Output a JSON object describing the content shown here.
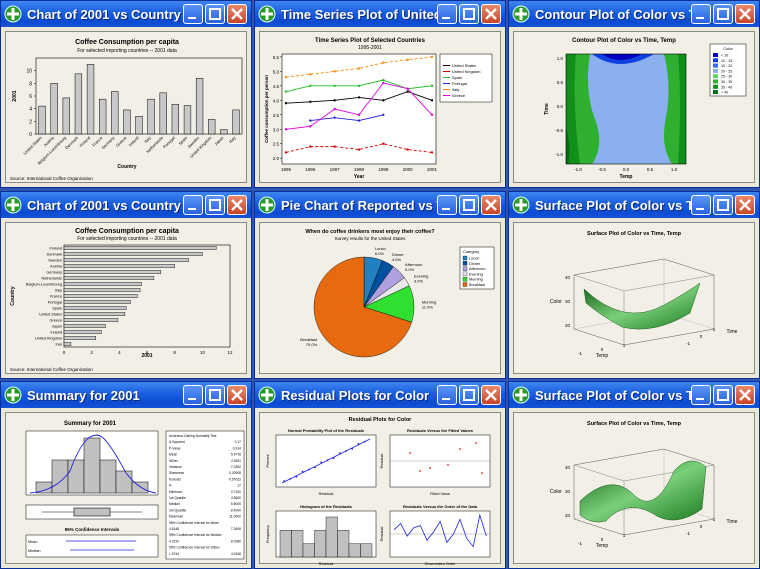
{
  "windows": [
    {
      "title": "Chart of 2001 vs Country"
    },
    {
      "title": "Time Series Plot of United Stat..."
    },
    {
      "title": "Contour Plot of Color vs Time, ..."
    },
    {
      "title": "Chart of 2001 vs Country"
    },
    {
      "title": "Pie Chart of Reported vs Time ..."
    },
    {
      "title": "Surface Plot of Color vs Time, ..."
    },
    {
      "title": "Summary for 2001"
    },
    {
      "title": "Residual Plots for Color"
    },
    {
      "title": "Surface Plot of Color vs Time, ..."
    }
  ],
  "colors": {
    "accent": "#1a5de0",
    "close": "#c8442a",
    "bar_fill": "#c8c8c8",
    "pie_breakfast": "#e86a10"
  },
  "chart_data": [
    {
      "type": "bar",
      "title": "Coffee Consumption per capita",
      "subtitle": "For selected importing countries -- 2001 data",
      "xlabel": "Country",
      "ylabel": "2001",
      "note": "Source: International Coffee Organization",
      "categories": [
        "United States",
        "Austria",
        "Belgium-Luxembourg",
        "Denmark",
        "Finland",
        "France",
        "Germany",
        "Greece",
        "Ireland",
        "Italy",
        "Netherlands",
        "Portugal",
        "Spain",
        "Sweden",
        "United Kingdom",
        "Japan",
        "Italy"
      ],
      "values": [
        4.4,
        8.0,
        5.7,
        9.5,
        11.0,
        5.5,
        6.7,
        3.8,
        2.8,
        5.5,
        6.5,
        4.7,
        4.5,
        8.8,
        2.3,
        0.7,
        3.8
      ],
      "ylim": [
        0,
        12
      ],
      "yticks": [
        "0",
        "2",
        "4",
        "6",
        "8",
        "10"
      ]
    },
    {
      "type": "line",
      "title": "Time Series Plot of Selected Countries",
      "subtitle": "1995-2001",
      "xlabel": "Year",
      "ylabel": "Coffee consumption per person",
      "x": [
        "1995",
        "1996",
        "1997",
        "1998",
        "1999",
        "2000",
        "2001"
      ],
      "ylim": [
        1.8,
        5.6
      ],
      "yticks": [
        "2.0",
        "2.5",
        "3.0",
        "3.5",
        "4.0",
        "4.5",
        "5.0",
        "5.5"
      ],
      "series": [
        {
          "name": "United States",
          "color": "#000000",
          "values": [
            3.9,
            3.95,
            4.0,
            4.1,
            4.0,
            4.3,
            4.0
          ]
        },
        {
          "name": "United Kingdom",
          "color": "#e00000",
          "values": [
            2.2,
            2.4,
            2.4,
            2.3,
            2.5,
            2.3,
            2.2
          ]
        },
        {
          "name": "Spain",
          "color": "#20c020",
          "values": [
            4.3,
            4.5,
            4.5,
            4.5,
            4.7,
            4.4,
            4.5
          ]
        },
        {
          "name": "Portugal",
          "color": "#2020e0",
          "values": [
            null,
            3.3,
            3.4,
            3.3,
            3.5,
            null,
            null
          ]
        },
        {
          "name": "Italy",
          "color": "#ff8800",
          "values": [
            4.8,
            4.9,
            5.0,
            5.1,
            5.3,
            5.4,
            5.5
          ]
        },
        {
          "name": "Greece",
          "color": "#e000e0",
          "values": [
            3.0,
            3.1,
            3.7,
            3.5,
            4.6,
            4.4,
            3.5
          ]
        }
      ]
    },
    {
      "type": "heatmap",
      "title": "Contour Plot of Color vs Time, Temp",
      "xlabel": "Temp",
      "ylabel": "Time",
      "xticks": [
        "-1.0",
        "-0.5",
        "0.0",
        "0.5",
        "1.0"
      ],
      "yticks": [
        "-1.0",
        "-0.5",
        "0.0",
        "0.5",
        "1.0"
      ],
      "legend_title": "Color",
      "levels": [
        "< 10",
        "10 - 15",
        "15 - 20",
        "20 - 25",
        "25 - 30",
        "30 - 35",
        "35 - 40",
        "> 40"
      ],
      "level_colors": [
        "#0000c0",
        "#1040e0",
        "#3070f0",
        "#8ab0f0",
        "#60d060",
        "#30b030",
        "#10901a",
        "#007010"
      ]
    },
    {
      "type": "bar",
      "title": "Coffee Consumption per capita",
      "subtitle": "For selected importing countries -- 2001 data",
      "xlabel": "2001",
      "ylabel": "Country",
      "note": "Source: International Coffee Organization",
      "categories": [
        "Finland",
        "Denmark",
        "Sweden",
        "Austria",
        "Germany",
        "Netherlands",
        "Belgium-Luxembourg",
        "Italy",
        "France",
        "Portugal",
        "Spain",
        "United States",
        "Greece",
        "Japan",
        "Ireland",
        "United Kingdom",
        "Iran"
      ],
      "values": [
        11.0,
        10.0,
        9.0,
        8.0,
        7.0,
        6.5,
        5.6,
        5.5,
        5.3,
        4.8,
        4.5,
        4.4,
        3.9,
        3.0,
        2.7,
        2.3,
        0.5
      ],
      "xlim": [
        0,
        12
      ],
      "xticks": [
        "0",
        "2",
        "4",
        "6",
        "8",
        "10",
        "12"
      ]
    },
    {
      "type": "pie",
      "title": "When do coffee drinkers most enjoy their coffee?",
      "subtitle": "Survey results for the United States",
      "legend_title": "Category",
      "slices": [
        {
          "label": "Lunch",
          "pct": "6.0%",
          "value": 6.0,
          "color": "#2080c0"
        },
        {
          "label": "Dinner",
          "pct": "4.0%",
          "value": 4.0,
          "color": "#0050a0"
        },
        {
          "label": "Afternoon",
          "pct": "5.0%",
          "value": 5.0,
          "color": "#b0a0e0"
        },
        {
          "label": "Evening",
          "pct": "3.0%",
          "value": 3.0,
          "color": "#e8e8e8"
        },
        {
          "label": "Morning",
          "pct": "11.9%",
          "value": 11.9,
          "color": "#30e030"
        },
        {
          "label": "Breakfast",
          "pct": "70.0%",
          "value": 70.0,
          "color": "#e86a10"
        }
      ]
    },
    {
      "type": "other",
      "title": "Surface Plot of Color vs Time, Temp",
      "zlabel": "Color",
      "xlabel": "Temp",
      "ylabel": "Time",
      "zticks": [
        "20",
        "30",
        "40"
      ],
      "xticks": [
        "-1",
        "0",
        "1"
      ],
      "yticks": [
        "-1",
        "0",
        "1"
      ]
    },
    {
      "type": "other",
      "title": "Summary for 2001",
      "ci_title": "95% Confidence Intervals",
      "ci_labels": [
        "Mean",
        "Median"
      ],
      "stats": [
        [
          "Anderson-Darling Normality Test",
          ""
        ],
        [
          "A-Squared",
          "0.17"
        ],
        [
          "P-Value",
          "0.914"
        ],
        [
          "Mean",
          "5.9778"
        ],
        [
          "StDev",
          "2.6511"
        ],
        [
          "Variance",
          "7.0282"
        ],
        [
          "Skewness",
          "0.20908"
        ],
        [
          "Kurtosis",
          "-0.57022"
        ],
        [
          "N",
          "17"
        ],
        [
          "Minimum",
          "0.7100"
        ],
        [
          "1st Quartile",
          "4.3600"
        ],
        [
          "Median",
          "5.5000"
        ],
        [
          "3rd Quartile",
          "8.4000"
        ],
        [
          "Maximum",
          "11.0000"
        ],
        [
          "95% Confidence Interval for Mean",
          ""
        ],
        [
          "4.6148",
          "7.3408"
        ],
        [
          "95% Confidence Interval for Median",
          ""
        ],
        [
          "4.3720",
          "8.0280"
        ],
        [
          "95% Confidence Interval for StDev",
          ""
        ],
        [
          "1.9744",
          "4.0348"
        ]
      ]
    },
    {
      "type": "other",
      "title": "Residual Plots for Color",
      "panels": [
        {
          "title": "Normal Probability Plot of the Residuals",
          "xlabel": "Residual",
          "ylabel": "Percent"
        },
        {
          "title": "Residuals Versus the Fitted Values",
          "xlabel": "Fitted Value",
          "ylabel": "Residual"
        },
        {
          "title": "Histogram of the Residuals",
          "xlabel": "Residual",
          "ylabel": "Frequency",
          "values": [
            2,
            2,
            1,
            2,
            3,
            2,
            1,
            1
          ]
        },
        {
          "title": "Residuals Versus the Order of the Data",
          "xlabel": "Observation Order",
          "ylabel": "Residual",
          "values": [
            2,
            5,
            -1,
            3,
            4,
            -3,
            1,
            6,
            -4,
            0,
            7,
            -2,
            -6,
            9,
            -1
          ]
        }
      ]
    },
    {
      "type": "other",
      "title": "Surface Plot of Color vs Time, Temp",
      "zlabel": "Color",
      "xlabel": "Temp",
      "ylabel": "Time",
      "zticks": [
        "20",
        "30",
        "40"
      ],
      "xticks": [
        "-1",
        "0",
        "1"
      ],
      "yticks": [
        "-1",
        "0",
        "1"
      ]
    }
  ]
}
